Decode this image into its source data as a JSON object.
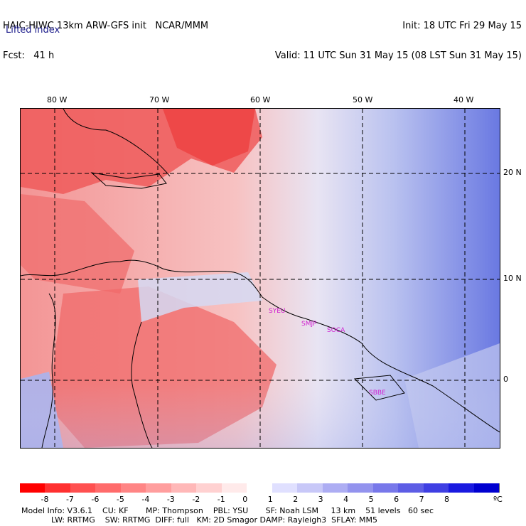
{
  "header": {
    "title": "HAIC-HIWC 13km ARW-GFS init   NCAR/MMM",
    "forecast": "Fcst:   41 h",
    "init": "Init: 18 UTC Fri 29 May 15",
    "valid": "Valid: 11 UTC Sun 31 May 15 (08 LST Sun 31 May 15)",
    "field": "Lifted index"
  },
  "map": {
    "lon_labels": [
      "80 W",
      "70 W",
      "60 W",
      "50 W",
      "40 W"
    ],
    "lat_labels": [
      "20 N",
      "10 N",
      "0"
    ],
    "stations": [
      "SYEU",
      "SMJP",
      "SOCA",
      "SBBE"
    ],
    "colors": {
      "strong_red": "#ee4040",
      "mid_red": "#f27a7a",
      "light_red": "#f7b3b3",
      "neutral": "#f5eaea",
      "light_blue": "#c8cdf0",
      "mid_blue": "#8a96e6",
      "strong_blue": "#5a6ae0"
    }
  },
  "colorbar": {
    "ticks": [
      "-8",
      "-7",
      "-6",
      "-5",
      "-4",
      "-3",
      "-2",
      "-1",
      "0",
      "1",
      "2",
      "3",
      "4",
      "5",
      "6",
      "7",
      "8"
    ],
    "unit": "ºC",
    "colors": [
      "#ff0000",
      "#ff3030",
      "#ff5050",
      "#ff6b6b",
      "#ff8585",
      "#ff9e9e",
      "#ffb8b8",
      "#ffd1d1",
      "#ffeaea",
      "#ffffff",
      "#e0e0ff",
      "#c8c8f8",
      "#adadf3",
      "#9393ee",
      "#7878ea",
      "#5d5de5",
      "#3f3fe3",
      "#1a1ae0",
      "#0000d0"
    ]
  },
  "footer": {
    "line1": "Model Info: V3.6.1    CU: KF       MP: Thompson    PBL: YSU       SF: Noah LSM     13 km    51 levels   60 sec",
    "line2": "            LW: RRTMG    SW: RRTMG  DIFF: full   KM: 2D Smagor DAMP: Rayleigh3  SFLAY: MM5"
  }
}
